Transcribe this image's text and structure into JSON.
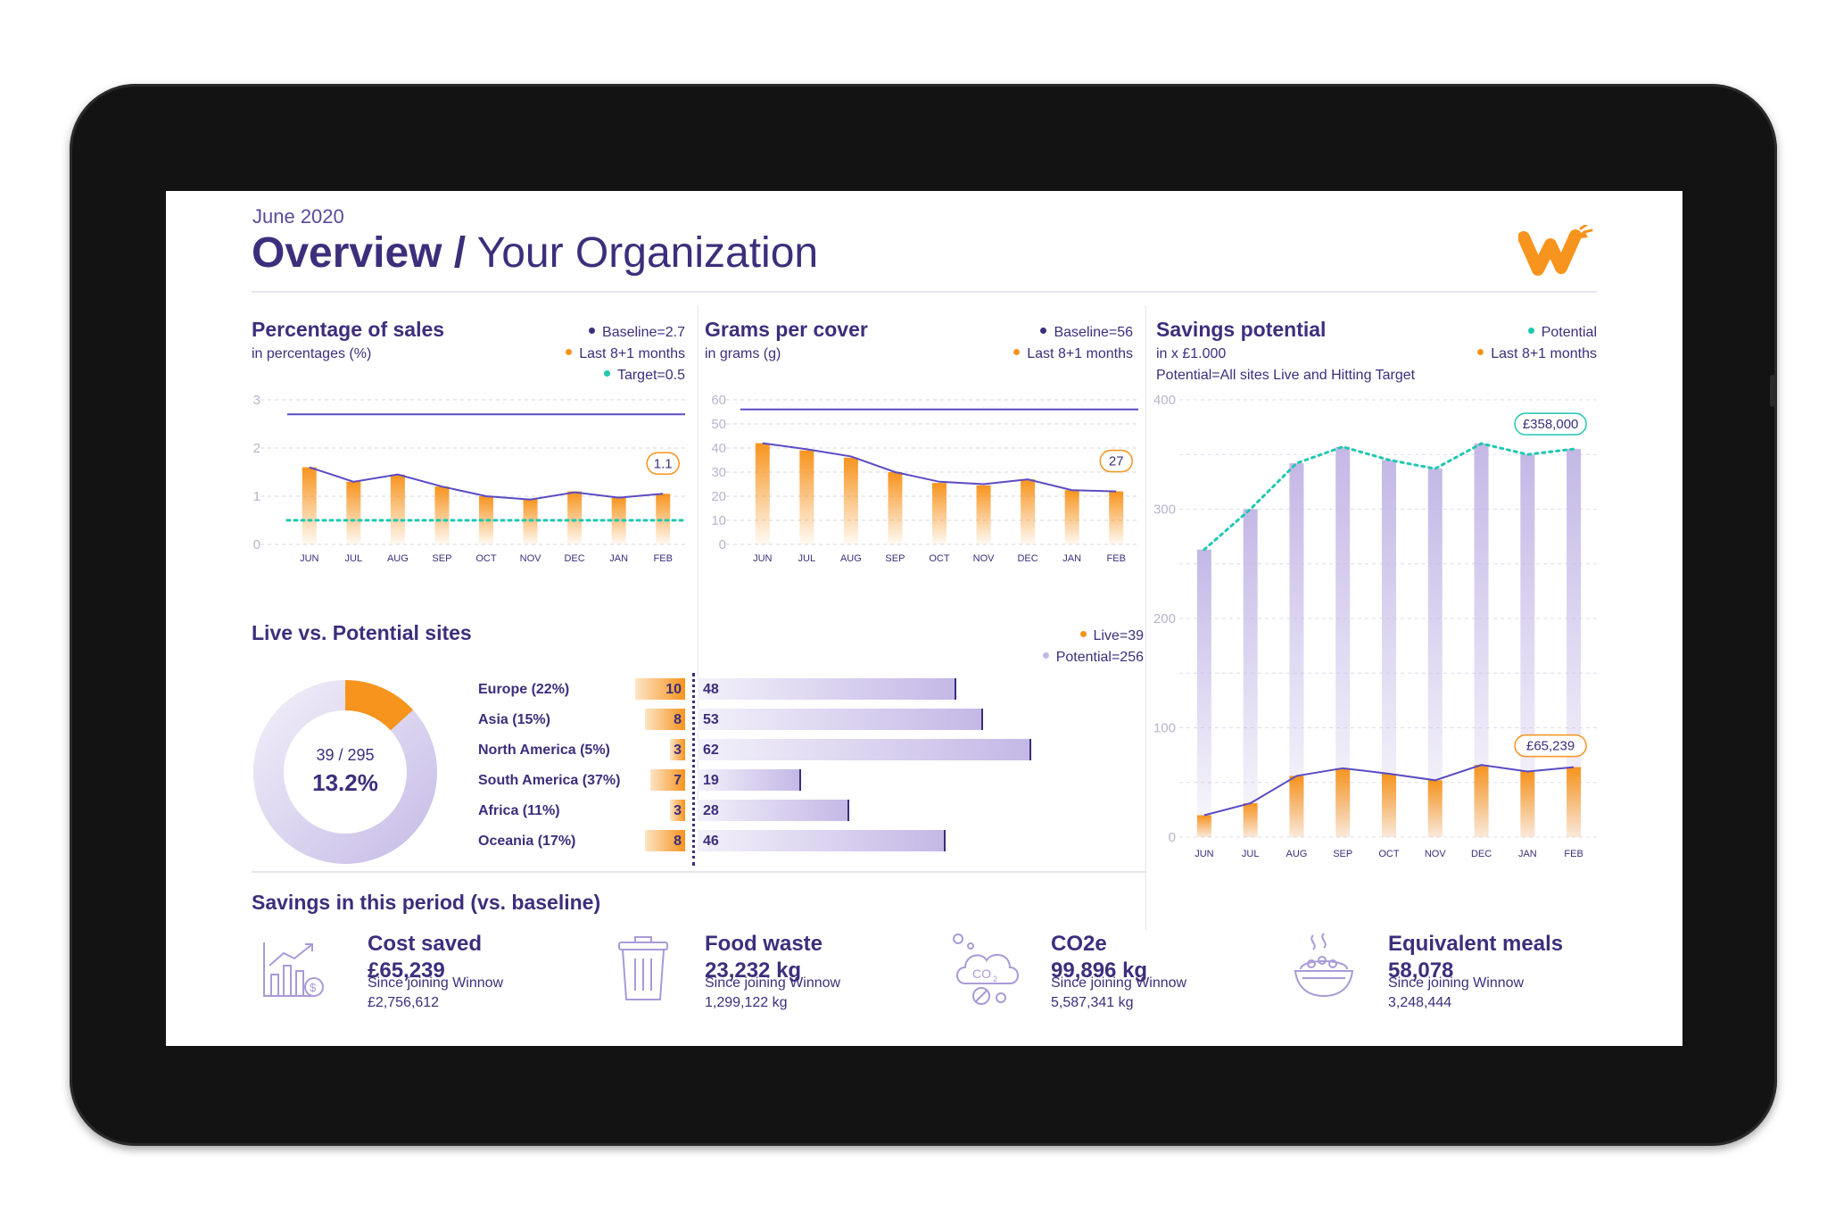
{
  "header": {
    "period": "June 2020",
    "title_bold": "Overview /",
    "title_light": "Your Organization"
  },
  "colors": {
    "brand_orange": "#f7941e",
    "primary_purple": "#3d2e7c",
    "line_purple": "#5b4bc4",
    "light_purple": "#c4b8e6",
    "target_teal": "#1fc8b0"
  },
  "icons": [
    "logo-icon",
    "cost-chart-icon",
    "bin-icon",
    "co2-cloud-icon",
    "meal-bowl-icon"
  ],
  "chart_data": [
    {
      "id": "pct_sales",
      "type": "bar",
      "title": "Percentage of sales",
      "subtitle": "in percentages (%)",
      "legend": [
        "Baseline=2.7",
        "Last 8+1 months",
        "Target=0.5"
      ],
      "categories": [
        "JUN",
        "JUL",
        "AUG",
        "SEP",
        "OCT",
        "NOV",
        "DEC",
        "JAN",
        "FEB"
      ],
      "series": [
        {
          "name": "Last 8+1 months",
          "values": [
            1.6,
            1.3,
            1.45,
            1.2,
            1.0,
            0.95,
            1.1,
            0.98,
            1.05
          ]
        },
        {
          "name": "Last 8+1 months",
          "values": [
            1.6,
            1.3,
            1.45,
            1.2,
            1.0,
            0.93,
            1.08,
            0.97,
            1.05
          ]
        }
      ],
      "baseline": 2.7,
      "target": 0.5,
      "last_label": "1.1",
      "ylim": [
        0,
        3
      ],
      "yticks": [
        "0",
        "1",
        "2",
        "3"
      ]
    },
    {
      "id": "grams",
      "type": "bar",
      "title": "Grams per cover",
      "subtitle": "in grams (g)",
      "legend": [
        "Baseline=56",
        "Last 8+1 months"
      ],
      "categories": [
        "JUN",
        "JUL",
        "AUG",
        "SEP",
        "OCT",
        "NOV",
        "DEC",
        "JAN",
        "FEB"
      ],
      "series": [
        {
          "name": "Last 8+1 months",
          "values": [
            42,
            39,
            36,
            30,
            25.5,
            24.5,
            27,
            22.5,
            22
          ]
        },
        {
          "name": "Last 8+1 months",
          "values": [
            42,
            39.5,
            36.5,
            30,
            26,
            25,
            27,
            22.5,
            22
          ]
        }
      ],
      "baseline": 56,
      "last_label": "27",
      "ylim": [
        0,
        60
      ],
      "yticks": [
        "0",
        "10",
        "20",
        "30",
        "40",
        "50",
        "60"
      ]
    },
    {
      "id": "savings",
      "type": "bar",
      "title": "Savings potential",
      "subtitle": "in x £1.000",
      "note": "Potential=All sites Live and Hitting Target",
      "legend": [
        "Potential",
        "Last 8+1 months"
      ],
      "categories": [
        "JUN",
        "JUL",
        "AUG",
        "SEP",
        "OCT",
        "NOV",
        "DEC",
        "JAN",
        "FEB"
      ],
      "series": [
        {
          "name": "Potential",
          "values": [
            263,
            300,
            342,
            357,
            345,
            337,
            360,
            350,
            355
          ]
        },
        {
          "name": "Last 8+1 months",
          "values": [
            20,
            31,
            56,
            63,
            58,
            52,
            66,
            60,
            64
          ]
        }
      ],
      "top_label": "£358,000",
      "bottom_label": "£65,239",
      "ylim": [
        0,
        400
      ],
      "yticks": [
        "0",
        "100",
        "200",
        "300",
        "400"
      ]
    },
    {
      "id": "sites",
      "type": "bar",
      "title": "Live vs. Potential sites",
      "legend": [
        "Live=39",
        "Potential=256"
      ],
      "donut": {
        "fraction_label": "39 / 295",
        "percent_label": "13.2%",
        "live_fraction": 0.132
      },
      "categories": [
        "Europe (22%)",
        "Asia (15%)",
        "North America (5%)",
        "South America (37%)",
        "Africa (11%)",
        "Oceania (17%)"
      ],
      "series": [
        {
          "name": "Live",
          "values": [
            10,
            8,
            3,
            7,
            3,
            8
          ]
        },
        {
          "name": "Potential",
          "values": [
            48,
            53,
            62,
            19,
            28,
            46
          ]
        }
      ]
    }
  ],
  "savings_period": {
    "title": "Savings in this period (vs. baseline)",
    "items": [
      {
        "title": "Cost saved",
        "value": "£65,239",
        "since": "Since joining Winnow",
        "total": "£2,756,612"
      },
      {
        "title": "Food waste",
        "value": "23,232 kg",
        "since": "Since joining Winnow",
        "total": "1,299,122 kg"
      },
      {
        "title": "CO2e",
        "value": "99,896 kg",
        "since": "Since joining Winnow",
        "total": "5,587,341 kg"
      },
      {
        "title": "Equivalent meals",
        "value": "58,078",
        "since": "Since joining Winnow",
        "total": "3,248,444"
      }
    ]
  }
}
